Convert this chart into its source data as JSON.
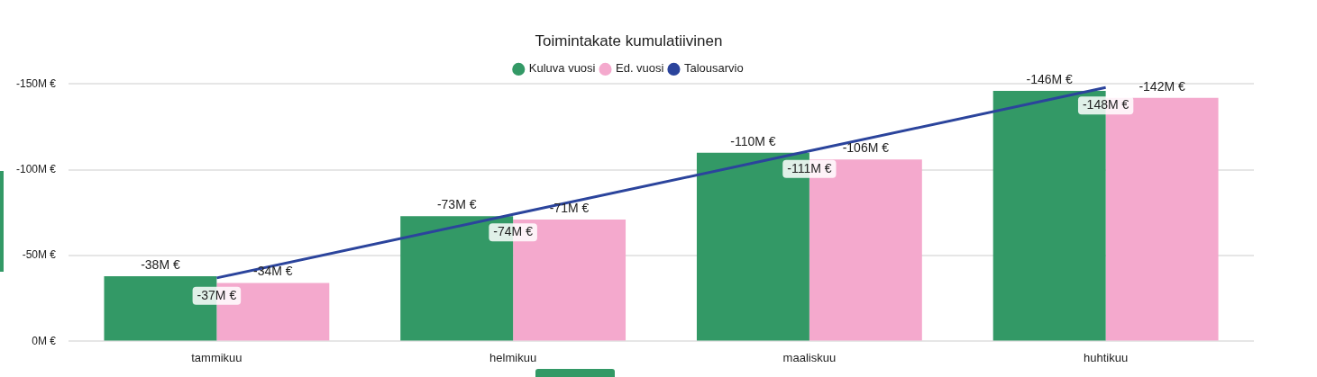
{
  "chart_data": {
    "type": "bar",
    "title": "Toimintakate kumulatiivinen",
    "categories": [
      "tammikuu",
      "helmikuu",
      "maaliskuu",
      "huhtikuu"
    ],
    "series": [
      {
        "name": "Kuluva vuosi",
        "color": "#339966",
        "values": [
          -38,
          -73,
          -110,
          -146
        ],
        "value_labels": [
          "-38M €",
          "-73M €",
          "-110M €",
          "-146M €"
        ]
      },
      {
        "name": "Ed. vuosi",
        "color": "#f4a9cd",
        "values": [
          -34,
          -71,
          -106,
          -142
        ],
        "value_labels": [
          "-34M €",
          "-71M €",
          "-106M €",
          "-142M €"
        ]
      },
      {
        "name": "Talousarvio",
        "type": "line",
        "color": "#2b449c",
        "marker": "none",
        "values": [
          -37,
          -74,
          -111,
          -148
        ],
        "value_labels": [
          "-37M €",
          "-74M €",
          "-111M €",
          "-148M €"
        ]
      }
    ],
    "ylim": [
      0,
      -150
    ],
    "yticks": [
      {
        "value": 0,
        "label": "0M €"
      },
      {
        "value": -50,
        "label": "-50M €"
      },
      {
        "value": -100,
        "label": "-100M €"
      },
      {
        "value": -150,
        "label": "-150M €"
      }
    ],
    "grid": "y",
    "legend": "top"
  }
}
